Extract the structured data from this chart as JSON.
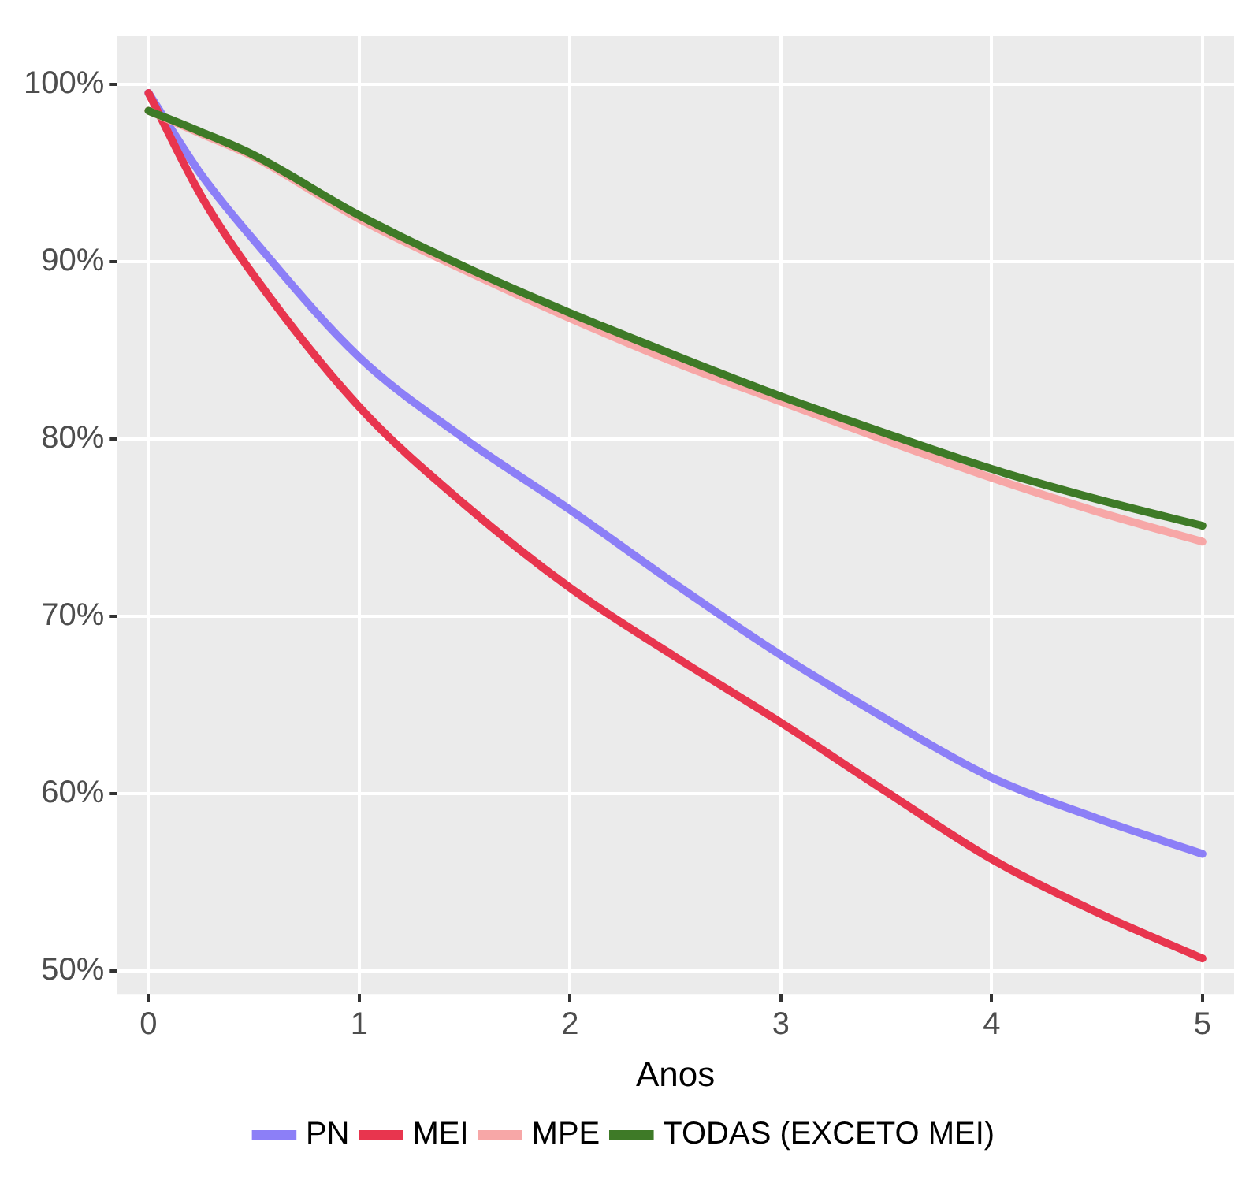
{
  "chart_data": {
    "type": "line",
    "xlabel": "Anos",
    "x": [
      0,
      0.25,
      0.5,
      1,
      1.5,
      2,
      2.5,
      3,
      3.5,
      4,
      4.5,
      5
    ],
    "series": [
      {
        "name": "PN",
        "color": "#8c7ff7",
        "values": [
          99.5,
          94.9,
          91.2,
          84.6,
          80,
          76,
          71.8,
          67.8,
          64.2,
          60.9,
          58.6,
          56.6
        ]
      },
      {
        "name": "MEI",
        "color": "#e8354e",
        "values": [
          99.5,
          93.7,
          89.2,
          81.8,
          76.3,
          71.6,
          67.7,
          64,
          60.1,
          56.3,
          53.3,
          50.7
        ]
      },
      {
        "name": "MPE",
        "color": "#f7a7a7",
        "values": [
          98.5,
          97.2,
          95.9,
          92.4,
          89.5,
          86.8,
          84.3,
          82.1,
          79.9,
          77.8,
          75.9,
          74.2
        ]
      },
      {
        "name": "TODAS (EXCETO MEI)",
        "color": "#3e7a27",
        "values": [
          98.5,
          97.3,
          96,
          92.6,
          89.7,
          87.1,
          84.7,
          82.4,
          80.3,
          78.3,
          76.6,
          75.1
        ]
      }
    ],
    "xlim": [
      -0.15,
      5.15
    ],
    "xticks": [
      0,
      1,
      2,
      3,
      4,
      5
    ],
    "ylim": [
      48.7,
      102.7
    ],
    "yticks": [
      {
        "value": 50,
        "label": "50%"
      },
      {
        "value": 60,
        "label": "60%"
      },
      {
        "value": 70,
        "label": "70%"
      },
      {
        "value": 80,
        "label": "80%"
      },
      {
        "value": 90,
        "label": "90%"
      },
      {
        "value": 100,
        "label": "100%"
      }
    ],
    "grid": true,
    "legend": "bottom",
    "marker": "none",
    "line_style": "solid"
  }
}
